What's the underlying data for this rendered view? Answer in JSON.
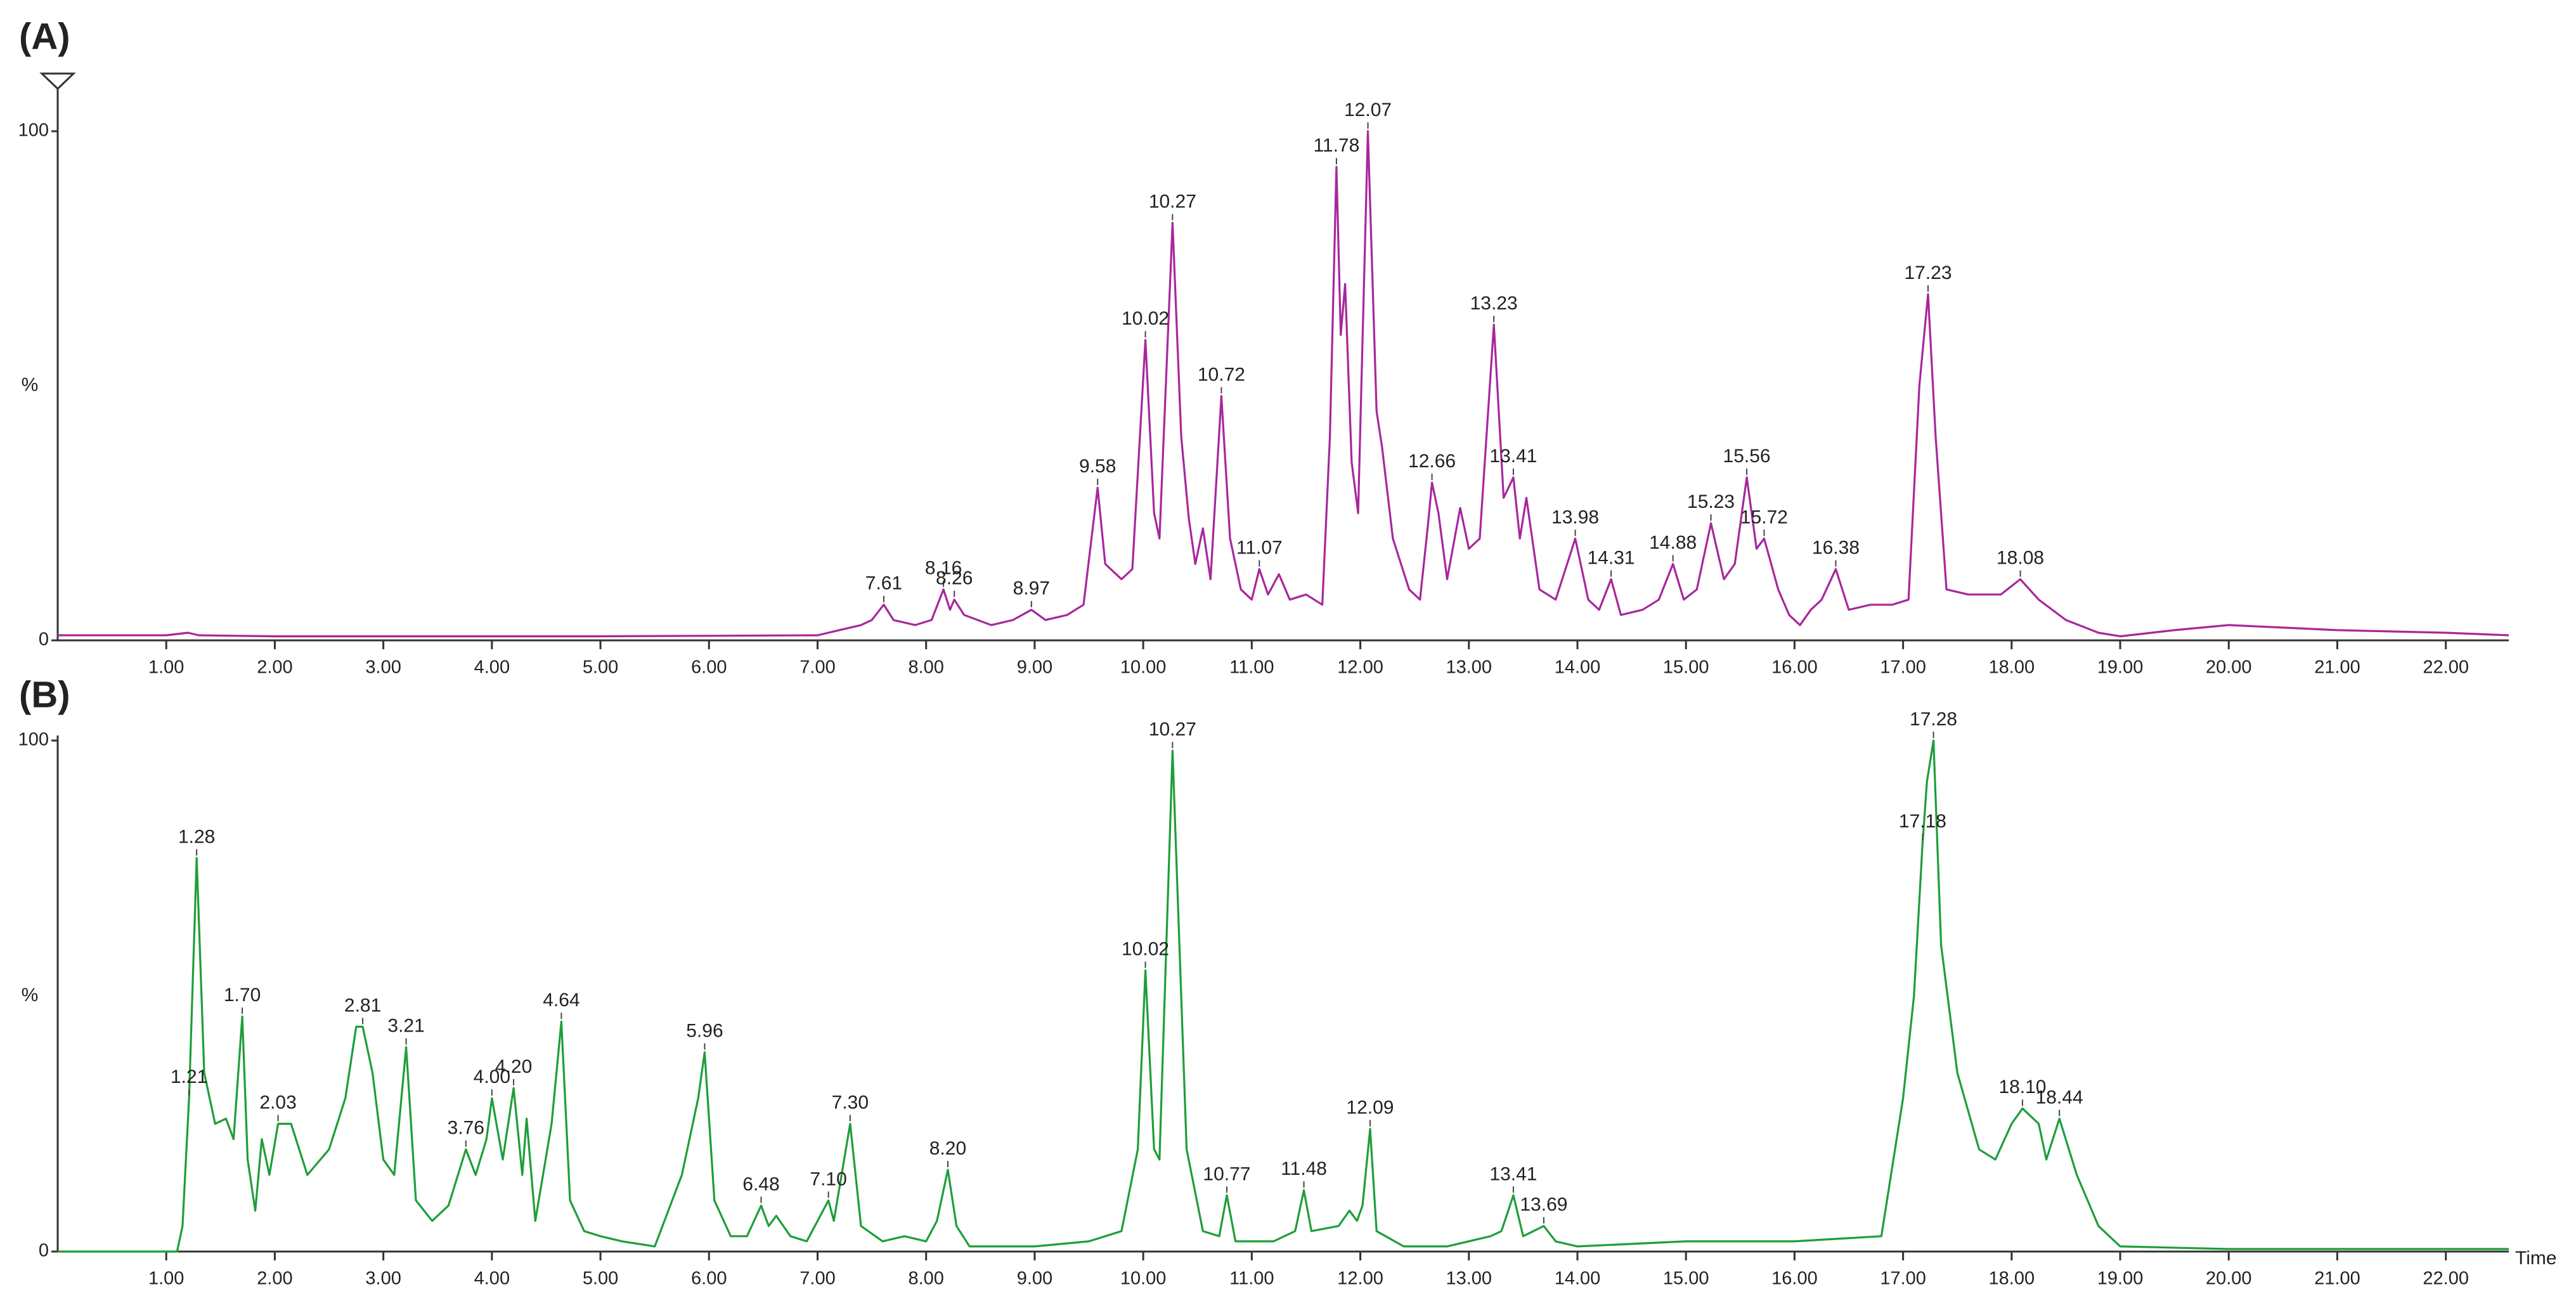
{
  "chart_data": [
    {
      "type": "line",
      "title": "(A)",
      "ylabel": "%",
      "x": [
        0,
        1.0,
        1.2,
        1.3,
        2,
        5,
        7,
        7.2,
        7.4,
        7.5,
        7.61,
        7.7,
        7.9,
        8.05,
        8.16,
        8.22,
        8.26,
        8.35,
        8.6,
        8.8,
        8.97,
        9.1,
        9.3,
        9.45,
        9.58,
        9.65,
        9.8,
        9.9,
        10.02,
        10.1,
        10.15,
        10.27,
        10.35,
        10.42,
        10.48,
        10.55,
        10.62,
        10.72,
        10.8,
        10.9,
        11.0,
        11.07,
        11.15,
        11.25,
        11.35,
        11.5,
        11.65,
        11.72,
        11.78,
        11.82,
        11.86,
        11.92,
        11.98,
        12.07,
        12.15,
        12.2,
        12.3,
        12.45,
        12.55,
        12.62,
        12.66,
        12.72,
        12.8,
        12.92,
        13.0,
        13.1,
        13.23,
        13.32,
        13.41,
        13.47,
        13.53,
        13.65,
        13.8,
        13.98,
        14.1,
        14.2,
        14.31,
        14.4,
        14.6,
        14.75,
        14.88,
        14.98,
        15.1,
        15.23,
        15.35,
        15.45,
        15.56,
        15.65,
        15.72,
        15.85,
        15.95,
        16.05,
        16.15,
        16.25,
        16.38,
        16.5,
        16.7,
        16.9,
        17.05,
        17.15,
        17.23,
        17.3,
        17.4,
        17.6,
        17.9,
        18.08,
        18.25,
        18.5,
        18.8,
        19.0,
        19.5,
        20.0,
        20.5,
        21,
        22,
        22.58
      ],
      "series": [
        {
          "name": "A",
          "color": "#a8279b",
          "values": [
            1,
            1,
            1.5,
            1,
            0.8,
            0.8,
            1,
            2,
            3,
            4,
            7,
            4,
            3,
            4,
            10,
            6,
            8,
            5,
            3,
            4,
            6,
            4,
            5,
            7,
            30,
            15,
            12,
            14,
            59,
            25,
            20,
            82,
            40,
            24,
            15,
            22,
            12,
            48,
            20,
            10,
            8,
            14,
            9,
            13,
            8,
            9,
            7,
            40,
            93,
            60,
            70,
            35,
            25,
            100,
            45,
            38,
            20,
            10,
            8,
            22,
            31,
            25,
            12,
            26,
            18,
            20,
            62,
            28,
            32,
            20,
            28,
            10,
            8,
            20,
            8,
            6,
            12,
            5,
            6,
            8,
            15,
            8,
            10,
            23,
            12,
            15,
            32,
            18,
            20,
            10,
            5,
            3,
            6,
            8,
            14,
            6,
            7,
            7,
            8,
            50,
            68,
            40,
            10,
            9,
            9,
            12,
            8,
            4,
            1.5,
            0.8,
            2,
            3,
            2.5,
            2,
            1.5,
            1
          ]
        }
      ],
      "annotations": [
        {
          "text": "7.61",
          "x": 7.61,
          "y": 7
        },
        {
          "text": "8.16",
          "x": 8.16,
          "y": 10
        },
        {
          "text": "8.26",
          "x": 8.26,
          "y": 8
        },
        {
          "text": "8.97",
          "x": 8.97,
          "y": 6
        },
        {
          "text": "9.58",
          "x": 9.58,
          "y": 30
        },
        {
          "text": "10.02",
          "x": 10.02,
          "y": 59
        },
        {
          "text": "10.27",
          "x": 10.27,
          "y": 82
        },
        {
          "text": "10.72",
          "x": 10.72,
          "y": 48
        },
        {
          "text": "11.07",
          "x": 11.07,
          "y": 14
        },
        {
          "text": "11.78",
          "x": 11.78,
          "y": 93
        },
        {
          "text": "12.07",
          "x": 12.07,
          "y": 100
        },
        {
          "text": "12.66",
          "x": 12.66,
          "y": 31
        },
        {
          "text": "13.23",
          "x": 13.23,
          "y": 62
        },
        {
          "text": "13.41",
          "x": 13.41,
          "y": 32
        },
        {
          "text": "13.98",
          "x": 13.98,
          "y": 20
        },
        {
          "text": "14.31",
          "x": 14.31,
          "y": 12
        },
        {
          "text": "14.88",
          "x": 14.88,
          "y": 15
        },
        {
          "text": "15.23",
          "x": 15.23,
          "y": 23
        },
        {
          "text": "15.56",
          "x": 15.56,
          "y": 32
        },
        {
          "text": "15.72",
          "x": 15.72,
          "y": 20
        },
        {
          "text": "16.38",
          "x": 16.38,
          "y": 14
        },
        {
          "text": "17.23",
          "x": 17.23,
          "y": 68
        },
        {
          "text": "18.08",
          "x": 18.08,
          "y": 12
        }
      ],
      "xlim": [
        0,
        22.58
      ],
      "ylim": [
        0,
        100
      ],
      "yticks": [
        0,
        100
      ],
      "xticks": [
        {
          "value": 1,
          "label": "1.00"
        },
        {
          "value": 2,
          "label": "2.00"
        },
        {
          "value": 3,
          "label": "3.00"
        },
        {
          "value": 4,
          "label": "4.00"
        },
        {
          "value": 5,
          "label": "5.00"
        },
        {
          "value": 6,
          "label": "6.00"
        },
        {
          "value": 7,
          "label": "7.00"
        },
        {
          "value": 8,
          "label": "8.00"
        },
        {
          "value": 9,
          "label": "9.00"
        },
        {
          "value": 10,
          "label": "10.00"
        },
        {
          "value": 11,
          "label": "11.00"
        },
        {
          "value": 12,
          "label": "12.00"
        },
        {
          "value": 13,
          "label": "13.00"
        },
        {
          "value": 14,
          "label": "14.00"
        },
        {
          "value": 15,
          "label": "15.00"
        },
        {
          "value": 16,
          "label": "16.00"
        },
        {
          "value": 17,
          "label": "17.00"
        },
        {
          "value": 18,
          "label": "18.00"
        },
        {
          "value": 19,
          "label": "19.00"
        },
        {
          "value": 20,
          "label": "20.00"
        },
        {
          "value": 21,
          "label": "21.00"
        },
        {
          "value": 22,
          "label": "22.00"
        }
      ]
    },
    {
      "type": "line",
      "title": "(B)",
      "ylabel": "%",
      "xlabel": "Time",
      "x": [
        0,
        1.1,
        1.15,
        1.21,
        1.28,
        1.35,
        1.45,
        1.55,
        1.62,
        1.7,
        1.75,
        1.82,
        1.88,
        1.95,
        2.03,
        2.15,
        2.3,
        2.5,
        2.65,
        2.75,
        2.81,
        2.9,
        3.0,
        3.1,
        3.21,
        3.3,
        3.45,
        3.6,
        3.76,
        3.85,
        3.95,
        4.0,
        4.1,
        4.2,
        4.28,
        4.32,
        4.4,
        4.55,
        4.64,
        4.72,
        4.85,
        5.0,
        5.2,
        5.5,
        5.75,
        5.9,
        5.96,
        6.05,
        6.2,
        6.35,
        6.48,
        6.55,
        6.62,
        6.75,
        6.9,
        7.05,
        7.1,
        7.15,
        7.3,
        7.4,
        7.6,
        7.8,
        8.0,
        8.1,
        8.2,
        8.28,
        8.4,
        9.0,
        9.5,
        9.8,
        9.95,
        10.02,
        10.1,
        10.15,
        10.27,
        10.4,
        10.55,
        10.7,
        10.77,
        10.85,
        11.2,
        11.4,
        11.48,
        11.55,
        11.8,
        11.9,
        11.97,
        12.02,
        12.09,
        12.15,
        12.4,
        12.8,
        13.2,
        13.3,
        13.41,
        13.5,
        13.69,
        13.8,
        14.0,
        15.0,
        16.0,
        16.8,
        17.0,
        17.1,
        17.18,
        17.22,
        17.28,
        17.35,
        17.5,
        17.7,
        17.85,
        18.0,
        18.1,
        18.25,
        18.32,
        18.44,
        18.6,
        18.8,
        19.0,
        20,
        22.58
      ],
      "series": [
        {
          "name": "B",
          "color": "#1e9e3a",
          "values": [
            0,
            0,
            5,
            30,
            77,
            35,
            25,
            26,
            22,
            46,
            18,
            8,
            22,
            15,
            25,
            25,
            15,
            20,
            30,
            44,
            44,
            35,
            18,
            15,
            40,
            10,
            6,
            9,
            20,
            15,
            22,
            30,
            18,
            32,
            15,
            26,
            6,
            25,
            45,
            10,
            4,
            3,
            2,
            1,
            15,
            30,
            39,
            10,
            3,
            3,
            9,
            5,
            7,
            3,
            2,
            8,
            10,
            6,
            25,
            5,
            2,
            3,
            2,
            6,
            16,
            5,
            1,
            1,
            2,
            4,
            20,
            55,
            20,
            18,
            98,
            20,
            4,
            3,
            11,
            2,
            2,
            4,
            12,
            4,
            5,
            8,
            6,
            9,
            24,
            4,
            1,
            1,
            3,
            4,
            11,
            3,
            5,
            2,
            1,
            2,
            2,
            3,
            30,
            50,
            80,
            92,
            100,
            60,
            35,
            20,
            18,
            25,
            28,
            25,
            18,
            26,
            15,
            5,
            1,
            0.5,
            0.5
          ]
        }
      ],
      "annotations": [
        {
          "text": "1.21",
          "x": 1.21,
          "y": 30
        },
        {
          "text": "1.28",
          "x": 1.28,
          "y": 77
        },
        {
          "text": "1.70",
          "x": 1.7,
          "y": 46
        },
        {
          "text": "2.03",
          "x": 2.03,
          "y": 25
        },
        {
          "text": "2.81",
          "x": 2.81,
          "y": 44
        },
        {
          "text": "3.21",
          "x": 3.21,
          "y": 40
        },
        {
          "text": "3.76",
          "x": 3.76,
          "y": 20
        },
        {
          "text": "4.00",
          "x": 4.0,
          "y": 30
        },
        {
          "text": "4.20",
          "x": 4.2,
          "y": 32
        },
        {
          "text": "4.64",
          "x": 4.64,
          "y": 45
        },
        {
          "text": "5.96",
          "x": 5.96,
          "y": 39
        },
        {
          "text": "6.48",
          "x": 6.48,
          "y": 9
        },
        {
          "text": "7.10",
          "x": 7.1,
          "y": 10
        },
        {
          "text": "7.30",
          "x": 7.3,
          "y": 25
        },
        {
          "text": "8.20",
          "x": 8.2,
          "y": 16
        },
        {
          "text": "10.02",
          "x": 10.02,
          "y": 55
        },
        {
          "text": "10.27",
          "x": 10.27,
          "y": 98
        },
        {
          "text": "10.77",
          "x": 10.77,
          "y": 11
        },
        {
          "text": "11.48",
          "x": 11.48,
          "y": 12
        },
        {
          "text": "12.09",
          "x": 12.09,
          "y": 24
        },
        {
          "text": "13.41",
          "x": 13.41,
          "y": 11
        },
        {
          "text": "13.69",
          "x": 13.69,
          "y": 5
        },
        {
          "text": "17.18",
          "x": 17.18,
          "y": 80
        },
        {
          "text": "17.28",
          "x": 17.28,
          "y": 100
        },
        {
          "text": "18.10",
          "x": 18.1,
          "y": 28
        },
        {
          "text": "18.44",
          "x": 18.44,
          "y": 26
        }
      ],
      "xlim": [
        0,
        22.58
      ],
      "ylim": [
        0,
        100
      ],
      "yticks": [
        0,
        100
      ],
      "xticks": [
        {
          "value": 1,
          "label": "1.00"
        },
        {
          "value": 2,
          "label": "2.00"
        },
        {
          "value": 3,
          "label": "3.00"
        },
        {
          "value": 4,
          "label": "4.00"
        },
        {
          "value": 5,
          "label": "5.00"
        },
        {
          "value": 6,
          "label": "6.00"
        },
        {
          "value": 7,
          "label": "7.00"
        },
        {
          "value": 8,
          "label": "8.00"
        },
        {
          "value": 9,
          "label": "9.00"
        },
        {
          "value": 10,
          "label": "10.00"
        },
        {
          "value": 11,
          "label": "11.00"
        },
        {
          "value": 12,
          "label": "12.00"
        },
        {
          "value": 13,
          "label": "13.00"
        },
        {
          "value": 14,
          "label": "14.00"
        },
        {
          "value": 15,
          "label": "15.00"
        },
        {
          "value": 16,
          "label": "16.00"
        },
        {
          "value": 17,
          "label": "17.00"
        },
        {
          "value": 18,
          "label": "18.00"
        },
        {
          "value": 19,
          "label": "19.00"
        },
        {
          "value": 20,
          "label": "20.00"
        },
        {
          "value": 21,
          "label": "21.00"
        },
        {
          "value": 22,
          "label": "22.00"
        }
      ]
    }
  ]
}
